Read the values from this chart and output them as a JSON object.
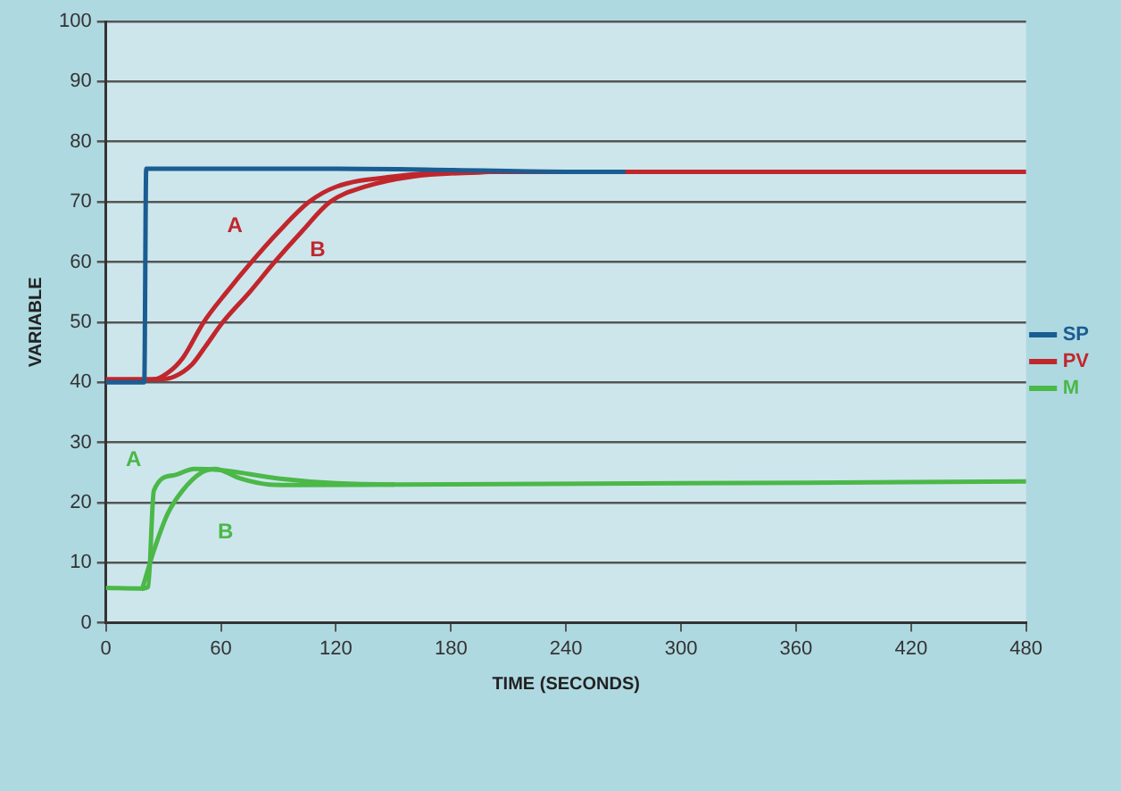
{
  "chart_data": {
    "type": "line",
    "xlabel": "TIME (SECONDS)",
    "ylabel": "VARIABLE",
    "xlim": [
      0,
      480
    ],
    "xticks": [
      0,
      60,
      120,
      180,
      240,
      300,
      360,
      420,
      480
    ],
    "ylim": [
      0,
      100
    ],
    "yticks": [
      0,
      10,
      20,
      30,
      40,
      50,
      60,
      70,
      80,
      90,
      100
    ],
    "grid": "y",
    "legend": "right",
    "marker": "none",
    "line_style": "solid",
    "series": [
      {
        "name": "SP",
        "color": "#1a5d92",
        "x": [
          0,
          20,
          21,
          60,
          120,
          180,
          240,
          270
        ],
        "values": [
          40,
          40,
          75.5,
          75.5,
          75.5,
          75.3,
          75,
          75
        ]
      },
      {
        "name": "PV",
        "color": "#c0272d",
        "x": [
          0,
          25,
          32,
          40,
          51,
          63,
          76,
          90,
          106,
          120,
          150,
          190,
          480
        ],
        "values": [
          40.5,
          40.5,
          41.5,
          44,
          50,
          55,
          60,
          65,
          70,
          72.5,
          74.2,
          75,
          75
        ]
      },
      {
        "color": "#c0272d",
        "x": [
          25,
          28,
          36,
          45,
          52,
          61,
          75,
          88,
          102,
          117,
          135,
          160,
          200
        ],
        "values": [
          40.5,
          40.5,
          41,
          43,
          46,
          50,
          55,
          60,
          65,
          70,
          72.5,
          74.2,
          75
        ]
      },
      {
        "name": "M",
        "color": "#4bb848",
        "x": [
          0,
          19,
          22,
          25,
          35,
          46,
          60,
          90,
          120,
          150,
          480
        ],
        "values": [
          5.8,
          5.7,
          6,
          22,
          24.5,
          25.6,
          25.4,
          24,
          23.2,
          23,
          23.5
        ]
      },
      {
        "color": "#4bb848",
        "x": [
          19,
          25,
          32,
          40,
          50,
          57,
          70,
          85,
          100,
          150
        ],
        "values": [
          5.7,
          12,
          18,
          22,
          25,
          25.6,
          24,
          23,
          22.9,
          23
        ]
      }
    ],
    "annotations": [
      "A",
      "B",
      "A",
      "B"
    ]
  }
}
